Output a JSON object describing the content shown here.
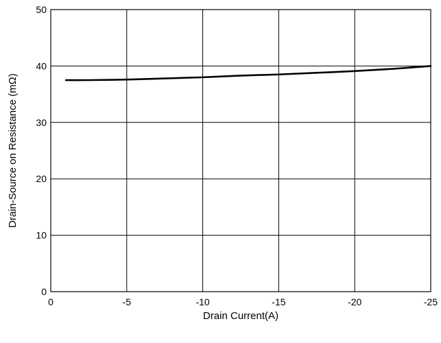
{
  "chart_data": {
    "type": "line",
    "title": "",
    "xlabel": "Drain Current(A)",
    "ylabel": "Drain-Source on Resistance (mΩ)",
    "xlim": [
      0,
      -25
    ],
    "ylim": [
      0,
      50
    ],
    "xticks": [
      0,
      -5,
      -10,
      -15,
      -20,
      -25
    ],
    "xtick_labels": [
      "0",
      "-5",
      "-10",
      "-15",
      "-20",
      "-25"
    ],
    "yticks": [
      0,
      10,
      20,
      30,
      40,
      50
    ],
    "ytick_labels": [
      "0",
      "10",
      "20",
      "30",
      "40",
      "50"
    ],
    "grid": true,
    "series": [
      {
        "color": "#000000",
        "x": [
          -1,
          -2.5,
          -5,
          -7.5,
          -10,
          -12.5,
          -15,
          -17.5,
          -20,
          -22.5,
          -25
        ],
        "y": [
          37.5,
          37.5,
          37.6,
          37.8,
          38.0,
          38.3,
          38.5,
          38.8,
          39.1,
          39.5,
          40.0
        ]
      }
    ]
  }
}
